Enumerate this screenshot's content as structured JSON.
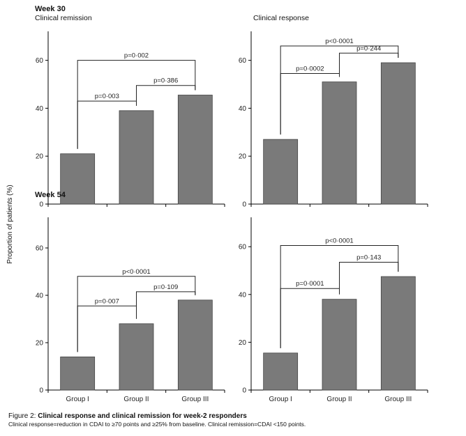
{
  "figure": {
    "ylabel": "Proportion of patients (%)",
    "caption_label": "Figure 2:",
    "caption_title": "Clinical response and clinical remission for week-2 responders",
    "caption_note": "Clinical response=reduction in CDAI to ≥70 points and ≥25% from baseline. Clinical remission=CDAI <150 points.",
    "colors": {
      "bar": "#7a7a7a",
      "axis": "#000000"
    }
  },
  "chart_data": [
    {
      "type": "bar",
      "week_label": "Week 30",
      "title": "Clinical remission",
      "categories": [
        "Group I",
        "Group II",
        "Group III"
      ],
      "values": [
        21,
        39,
        45.5
      ],
      "yticks": [
        0,
        20,
        40,
        60
      ],
      "ylim": [
        0,
        70
      ],
      "show_xlabels": false,
      "brackets": [
        {
          "from": 0,
          "to": 2,
          "label": "p=0·002",
          "level": 60
        },
        {
          "from": 0,
          "to": 1,
          "label": "p=0·003",
          "level": 43
        },
        {
          "from": 1,
          "to": 2,
          "label": "p=0·386",
          "level": 49.5
        }
      ]
    },
    {
      "type": "bar",
      "week_label": "",
      "title": "Clinical response",
      "categories": [
        "Group I",
        "Group II",
        "Group III"
      ],
      "values": [
        27,
        51,
        59
      ],
      "yticks": [
        0,
        20,
        40,
        60
      ],
      "ylim": [
        0,
        70
      ],
      "show_xlabels": false,
      "brackets": [
        {
          "from": 0,
          "to": 2,
          "label": "p<0·0001",
          "level": 66
        },
        {
          "from": 0,
          "to": 1,
          "label": "p=0·0002",
          "level": 54.5
        },
        {
          "from": 1,
          "to": 2,
          "label": "p=0·244",
          "level": 63
        }
      ]
    },
    {
      "type": "bar",
      "week_label": "Week 54",
      "title": "",
      "categories": [
        "Group I",
        "Group II",
        "Group III"
      ],
      "values": [
        14,
        28,
        38
      ],
      "yticks": [
        0,
        20,
        40,
        60
      ],
      "ylim": [
        0,
        70
      ],
      "show_xlabels": true,
      "brackets": [
        {
          "from": 0,
          "to": 2,
          "label": "p<0·0001",
          "level": 48
        },
        {
          "from": 0,
          "to": 1,
          "label": "p=0·007",
          "level": 35.5
        },
        {
          "from": 1,
          "to": 2,
          "label": "p=0·109",
          "level": 41.5
        }
      ]
    },
    {
      "type": "bar",
      "week_label": "",
      "title": "",
      "categories": [
        "Group I",
        "Group II",
        "Group III"
      ],
      "values": [
        15.5,
        38,
        47.5
      ],
      "yticks": [
        0,
        20,
        40,
        60
      ],
      "ylim": [
        0,
        70
      ],
      "show_xlabels": true,
      "brackets": [
        {
          "from": 0,
          "to": 2,
          "label": "p<0·0001",
          "level": 60.5
        },
        {
          "from": 0,
          "to": 1,
          "label": "p=0·0001",
          "level": 42.5
        },
        {
          "from": 1,
          "to": 2,
          "label": "p=0·143",
          "level": 53.5
        }
      ]
    }
  ]
}
